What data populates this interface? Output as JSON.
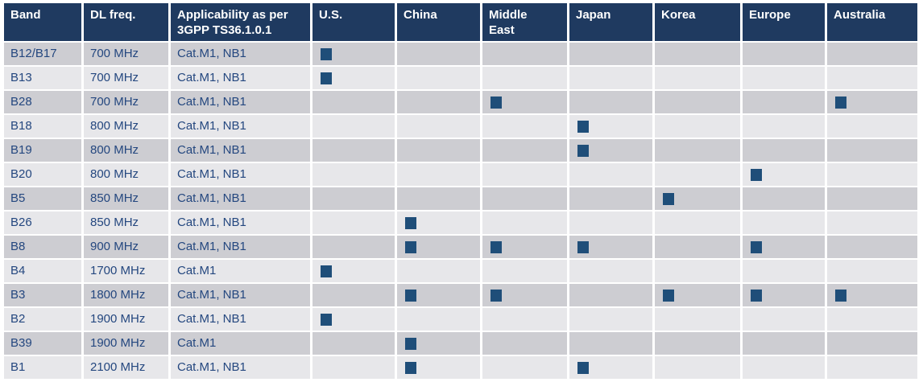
{
  "colors": {
    "header_bg": "#1F3A60",
    "header_text": "#FFFFFF",
    "row_dark": "#CDCDD2",
    "row_light": "#E7E7EA",
    "body_text": "#24477F",
    "marker": "#1F4E79"
  },
  "table": {
    "columns": [
      "Band",
      "DL freq.",
      "Applicability as per 3GPP TS36.1.0.1",
      "U.S.",
      "China",
      "Middle East",
      "Japan",
      "Korea",
      "Europe",
      "Australia"
    ],
    "marker_meaning": "applicable",
    "rows": [
      {
        "band": "B12/B17",
        "dl_freq": "700 MHz",
        "applicability": "Cat.M1, NB1",
        "regions": [
          "U.S."
        ]
      },
      {
        "band": "B13",
        "dl_freq": "700 MHz",
        "applicability": "Cat.M1, NB1",
        "regions": [
          "U.S."
        ]
      },
      {
        "band": "B28",
        "dl_freq": "700 MHz",
        "applicability": "Cat.M1, NB1",
        "regions": [
          "Middle East",
          "Australia"
        ]
      },
      {
        "band": "B18",
        "dl_freq": "800 MHz",
        "applicability": "Cat.M1, NB1",
        "regions": [
          "Japan"
        ]
      },
      {
        "band": "B19",
        "dl_freq": "800 MHz",
        "applicability": "Cat.M1, NB1",
        "regions": [
          "Japan"
        ]
      },
      {
        "band": "B20",
        "dl_freq": "800 MHz",
        "applicability": "Cat.M1, NB1",
        "regions": [
          "Europe"
        ]
      },
      {
        "band": "B5",
        "dl_freq": "850 MHz",
        "applicability": "Cat.M1, NB1",
        "regions": [
          "Korea"
        ]
      },
      {
        "band": "B26",
        "dl_freq": "850 MHz",
        "applicability": "Cat.M1, NB1",
        "regions": [
          "China"
        ]
      },
      {
        "band": "B8",
        "dl_freq": "900 MHz",
        "applicability": "Cat.M1, NB1",
        "regions": [
          "China",
          "Middle East",
          "Japan",
          "Europe"
        ]
      },
      {
        "band": "B4",
        "dl_freq": "1700 MHz",
        "applicability": "Cat.M1",
        "regions": [
          "U.S."
        ]
      },
      {
        "band": "B3",
        "dl_freq": "1800 MHz",
        "applicability": "Cat.M1, NB1",
        "regions": [
          "China",
          "Middle East",
          "Korea",
          "Europe",
          "Australia"
        ]
      },
      {
        "band": "B2",
        "dl_freq": "1900 MHz",
        "applicability": "Cat.M1, NB1",
        "regions": [
          "U.S."
        ]
      },
      {
        "band": "B39",
        "dl_freq": "1900 MHz",
        "applicability": "Cat.M1",
        "regions": [
          "China"
        ]
      },
      {
        "band": "B1",
        "dl_freq": "2100 MHz",
        "applicability": "Cat.M1, NB1",
        "regions": [
          "China",
          "Japan"
        ]
      }
    ]
  }
}
